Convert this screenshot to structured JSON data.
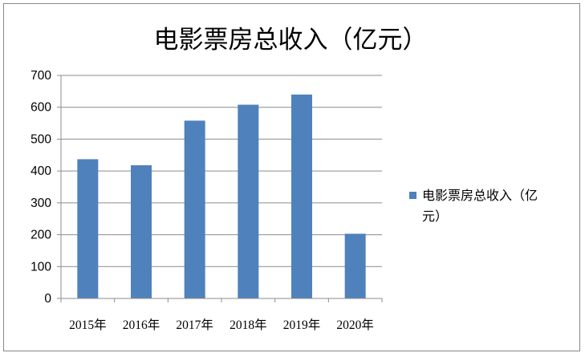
{
  "chart_data": {
    "type": "bar",
    "title": "电影票房总收入（亿元）",
    "categories": [
      "2015年",
      "2016年",
      "2017年",
      "2018年",
      "2019年",
      "2020年"
    ],
    "series": [
      {
        "name": "电影票房总收入（亿元）",
        "values": [
          437,
          418,
          558,
          608,
          640,
          203
        ],
        "color": "#4F81BD"
      }
    ],
    "yticks": [
      "0",
      "100",
      "200",
      "300",
      "400",
      "500",
      "600",
      "700"
    ],
    "ylim": [
      0,
      700
    ],
    "xlabel": "",
    "ylabel": "",
    "grid": true,
    "legend_position": "right",
    "legend_lines": [
      "电影票房总收入（亿",
      "元）"
    ]
  }
}
